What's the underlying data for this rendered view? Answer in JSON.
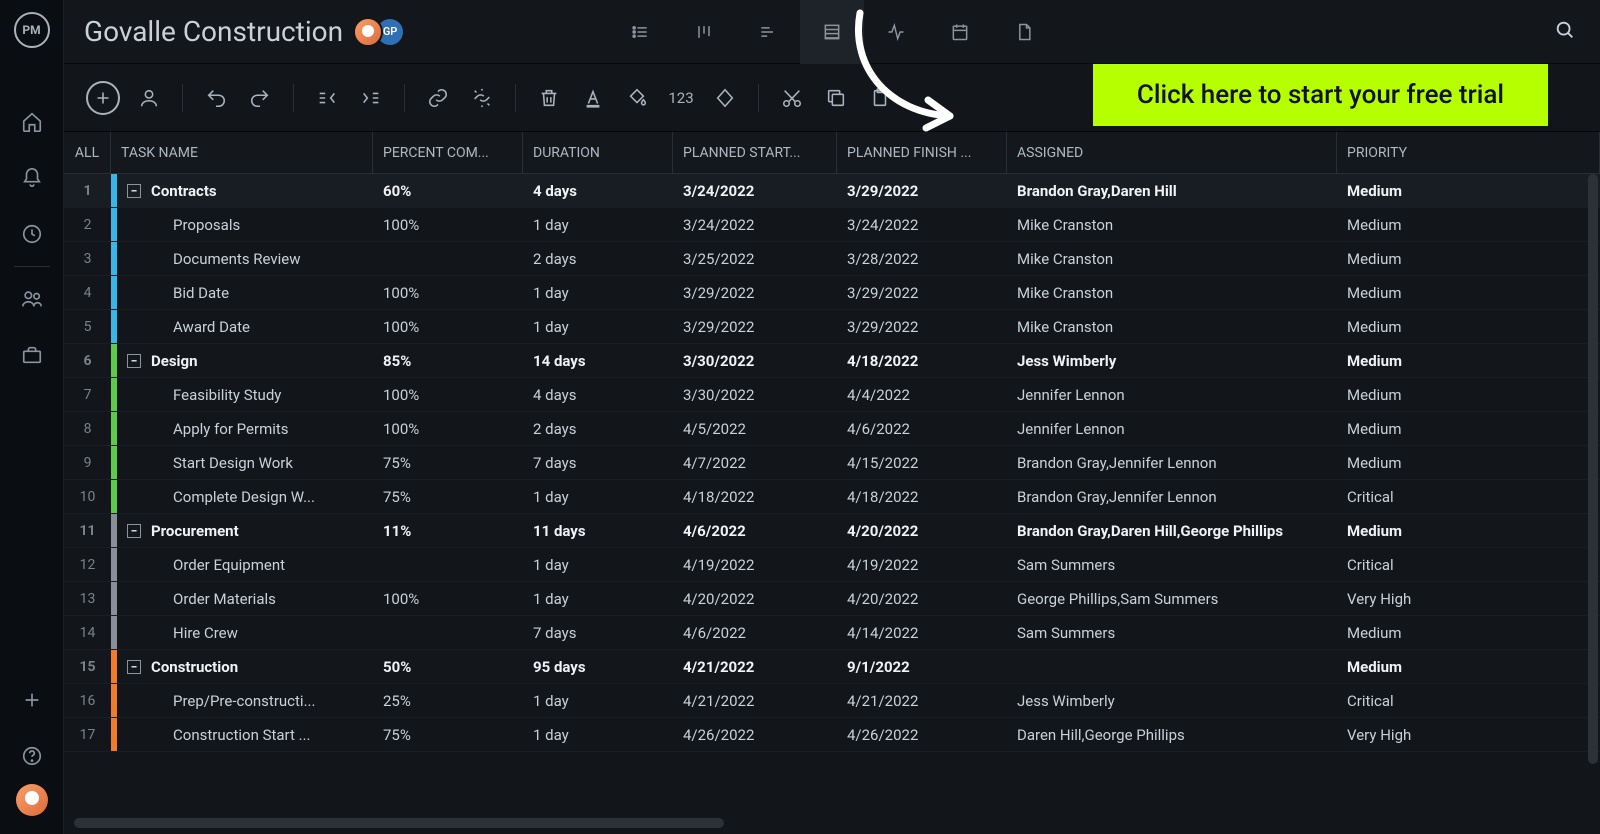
{
  "app_logo": "PM",
  "project_title": "Govalle Construction",
  "user_badge": "GP",
  "cta_label": "Click here to start your free trial",
  "columns": {
    "all": "ALL",
    "name": "TASK NAME",
    "pct": "PERCENT COM...",
    "dur": "DURATION",
    "start": "PLANNED START...",
    "finish": "PLANNED FINISH ...",
    "assigned": "ASSIGNED",
    "priority": "PRIORITY"
  },
  "colors": {
    "bg": "#0d1117",
    "panel": "#12151a",
    "cta": "#b6ff00",
    "row_contracts": "#3bb4e6",
    "row_design": "#5ec94a",
    "row_procurement": "#8a8f97",
    "row_construction": "#ef7b2d"
  },
  "rows": [
    {
      "n": "1",
      "parent": true,
      "color": "#3bb4e6",
      "name": "Contracts",
      "pct": "60%",
      "dur": "4 days",
      "start": "3/24/2022",
      "finish": "3/29/2022",
      "assigned": "Brandon Gray,Daren Hill",
      "priority": "Medium",
      "hl": true
    },
    {
      "n": "2",
      "parent": false,
      "color": "#3bb4e6",
      "name": "Proposals",
      "pct": "100%",
      "dur": "1 day",
      "start": "3/24/2022",
      "finish": "3/24/2022",
      "assigned": "Mike Cranston",
      "priority": "Medium"
    },
    {
      "n": "3",
      "parent": false,
      "color": "#3bb4e6",
      "name": "Documents Review",
      "pct": "",
      "dur": "2 days",
      "start": "3/25/2022",
      "finish": "3/28/2022",
      "assigned": "Mike Cranston",
      "priority": "Medium"
    },
    {
      "n": "4",
      "parent": false,
      "color": "#3bb4e6",
      "name": "Bid Date",
      "pct": "100%",
      "dur": "1 day",
      "start": "3/29/2022",
      "finish": "3/29/2022",
      "assigned": "Mike Cranston",
      "priority": "Medium"
    },
    {
      "n": "5",
      "parent": false,
      "color": "#3bb4e6",
      "name": "Award Date",
      "pct": "100%",
      "dur": "1 day",
      "start": "3/29/2022",
      "finish": "3/29/2022",
      "assigned": "Mike Cranston",
      "priority": "Medium"
    },
    {
      "n": "6",
      "parent": true,
      "color": "#5ec94a",
      "name": "Design",
      "pct": "85%",
      "dur": "14 days",
      "start": "3/30/2022",
      "finish": "4/18/2022",
      "assigned": "Jess Wimberly",
      "priority": "Medium"
    },
    {
      "n": "7",
      "parent": false,
      "color": "#5ec94a",
      "name": "Feasibility Study",
      "pct": "100%",
      "dur": "4 days",
      "start": "3/30/2022",
      "finish": "4/4/2022",
      "assigned": "Jennifer Lennon",
      "priority": "Medium"
    },
    {
      "n": "8",
      "parent": false,
      "color": "#5ec94a",
      "name": "Apply for Permits",
      "pct": "100%",
      "dur": "2 days",
      "start": "4/5/2022",
      "finish": "4/6/2022",
      "assigned": "Jennifer Lennon",
      "priority": "Medium"
    },
    {
      "n": "9",
      "parent": false,
      "color": "#5ec94a",
      "name": "Start Design Work",
      "pct": "75%",
      "dur": "7 days",
      "start": "4/7/2022",
      "finish": "4/15/2022",
      "assigned": "Brandon Gray,Jennifer Lennon",
      "priority": "Medium"
    },
    {
      "n": "10",
      "parent": false,
      "color": "#5ec94a",
      "name": "Complete Design W...",
      "pct": "75%",
      "dur": "1 day",
      "start": "4/18/2022",
      "finish": "4/18/2022",
      "assigned": "Brandon Gray,Jennifer Lennon",
      "priority": "Critical"
    },
    {
      "n": "11",
      "parent": true,
      "color": "#8a8f97",
      "name": "Procurement",
      "pct": "11%",
      "dur": "11 days",
      "start": "4/6/2022",
      "finish": "4/20/2022",
      "assigned": "Brandon Gray,Daren Hill,George Phillips",
      "priority": "Medium"
    },
    {
      "n": "12",
      "parent": false,
      "color": "#8a8f97",
      "name": "Order Equipment",
      "pct": "",
      "dur": "1 day",
      "start": "4/19/2022",
      "finish": "4/19/2022",
      "assigned": "Sam Summers",
      "priority": "Critical"
    },
    {
      "n": "13",
      "parent": false,
      "color": "#8a8f97",
      "name": "Order Materials",
      "pct": "100%",
      "dur": "1 day",
      "start": "4/20/2022",
      "finish": "4/20/2022",
      "assigned": "George Phillips,Sam Summers",
      "priority": "Very High"
    },
    {
      "n": "14",
      "parent": false,
      "color": "#8a8f97",
      "name": "Hire Crew",
      "pct": "",
      "dur": "7 days",
      "start": "4/6/2022",
      "finish": "4/14/2022",
      "assigned": "Sam Summers",
      "priority": "Medium"
    },
    {
      "n": "15",
      "parent": true,
      "color": "#ef7b2d",
      "name": "Construction",
      "pct": "50%",
      "dur": "95 days",
      "start": "4/21/2022",
      "finish": "9/1/2022",
      "assigned": "",
      "priority": "Medium"
    },
    {
      "n": "16",
      "parent": false,
      "color": "#ef7b2d",
      "name": "Prep/Pre-constructi...",
      "pct": "25%",
      "dur": "1 day",
      "start": "4/21/2022",
      "finish": "4/21/2022",
      "assigned": "Jess Wimberly",
      "priority": "Critical"
    },
    {
      "n": "17",
      "parent": false,
      "color": "#ef7b2d",
      "name": "Construction Start ...",
      "pct": "75%",
      "dur": "1 day",
      "start": "4/26/2022",
      "finish": "4/26/2022",
      "assigned": "Daren Hill,George Phillips",
      "priority": "Very High"
    }
  ]
}
